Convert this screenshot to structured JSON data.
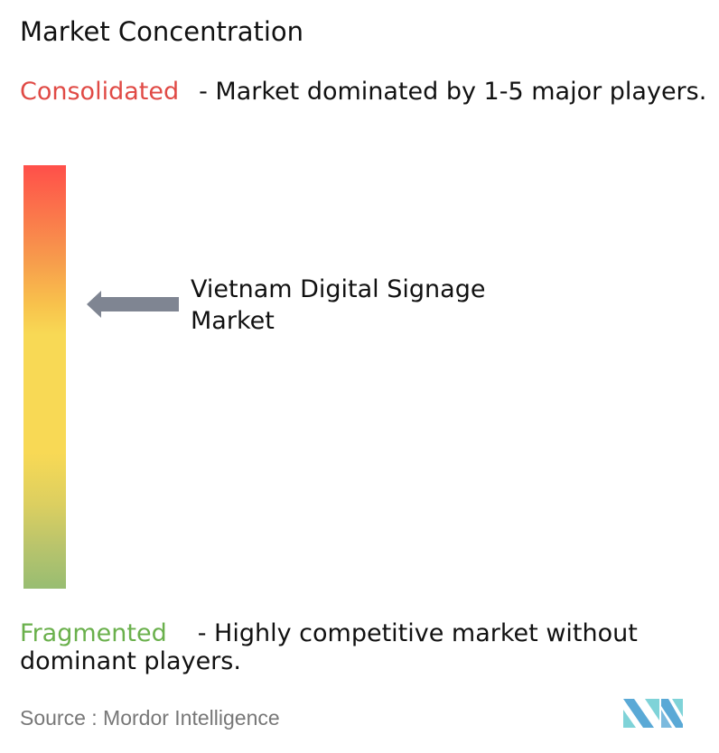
{
  "title": "Market Concentration",
  "consolidated": {
    "label": "Consolidated",
    "description": "- Market dominated by 1-5 major players.",
    "color": "#e04a45"
  },
  "fragmented": {
    "label": "Fragmented",
    "description": "- Highly competitive market without dominant players.",
    "color": "#6ab04c"
  },
  "marker": {
    "label": "Vietnam Digital Signage Market",
    "arrow_color": "#7f8592",
    "icon": "arrow-left-icon"
  },
  "scale": {
    "top_color": "#ff4f4a",
    "middle_color": "#f8d955",
    "bottom_color": "#98bd72"
  },
  "source": "Source :  Mordor Intelligence",
  "logo": {
    "name": "Mordor Intelligence",
    "colors": [
      "#5aa9d6",
      "#7fd3d8"
    ]
  }
}
